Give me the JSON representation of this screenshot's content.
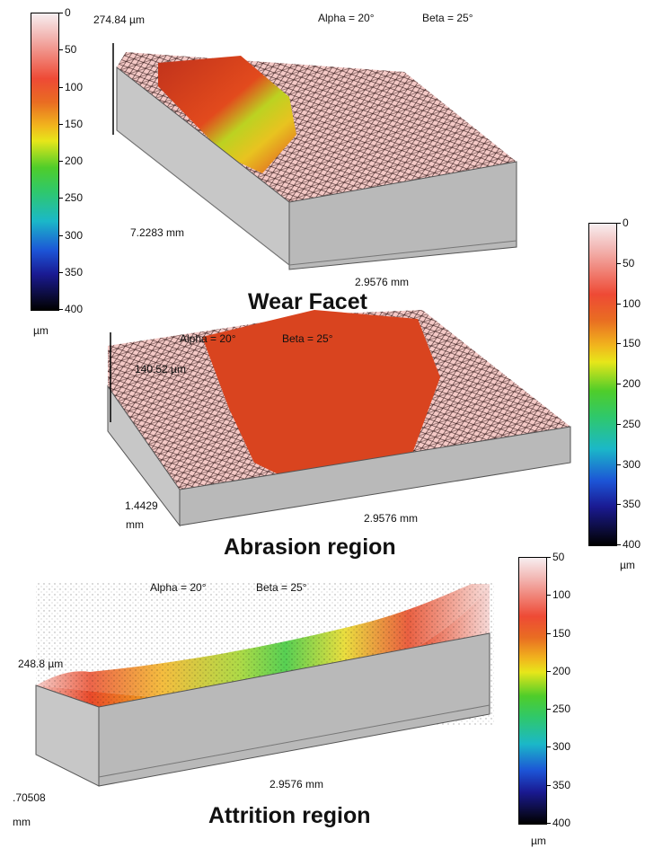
{
  "panels": {
    "wear": {
      "height_label": "274.84 µm",
      "alpha": "Alpha = 20°",
      "beta": "Beta = 25°",
      "length_label": "7.2283 mm",
      "width_label": "2.9576 mm",
      "title": "Wear Facet"
    },
    "abrasion": {
      "alpha": "Alpha = 20°",
      "beta": "Beta = 25°",
      "height_label": "140.52 µm",
      "length_label_line1": "1.4429",
      "length_label_line2": "mm",
      "width_label": "2.9576 mm",
      "title": "Abrasion region"
    },
    "attrition": {
      "alpha": "Alpha = 20°",
      "beta": "Beta = 25°",
      "height_label": "248.8 µm",
      "length_label_line1": ".70508",
      "length_label_line2": "mm",
      "width_label": "2.9576 mm",
      "title": "Attrition region"
    }
  },
  "colorbars": {
    "left": {
      "ticks": [
        "0",
        "50",
        "100",
        "150",
        "200",
        "250",
        "300",
        "350",
        "400"
      ],
      "unit": "µm"
    },
    "right_top": {
      "ticks": [
        "0",
        "50",
        "100",
        "150",
        "200",
        "250",
        "300",
        "350",
        "400"
      ],
      "unit": "µm"
    },
    "right_bottom": {
      "ticks": [
        "50",
        "100",
        "150",
        "200",
        "250",
        "300",
        "350",
        "400"
      ],
      "unit": "µm"
    }
  }
}
